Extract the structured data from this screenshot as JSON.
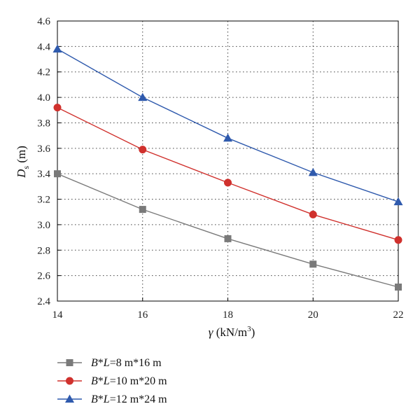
{
  "chart_data": {
    "type": "line",
    "x": [
      14,
      16,
      18,
      20,
      22
    ],
    "xlim": [
      14,
      22
    ],
    "ylim": [
      2.4,
      4.6
    ],
    "x_ticks": [
      "14",
      "16",
      "18",
      "20",
      "22"
    ],
    "y_ticks": [
      "2.4",
      "2.6",
      "2.8",
      "3.0",
      "3.2",
      "3.4",
      "3.6",
      "3.8",
      "4.0",
      "4.2",
      "4.4",
      "4.6"
    ],
    "xlabel": "γ (kN/m³)",
    "ylabel": "Ds (m)",
    "grid": "dotted",
    "legend_position": "bottom-left, below plot",
    "series": [
      {
        "name": "B*L=8 m*16 m",
        "values": [
          3.4,
          3.12,
          2.89,
          2.69,
          2.51
        ],
        "color": "#7a7a7a",
        "marker": "square"
      },
      {
        "name": "B*L=10 m*20 m",
        "values": [
          3.92,
          3.59,
          3.33,
          3.08,
          2.88
        ],
        "color": "#d0312d",
        "marker": "circle"
      },
      {
        "name": "B*L=12 m*24 m",
        "values": [
          4.38,
          4.0,
          3.68,
          3.41,
          3.18
        ],
        "color": "#2f5aad",
        "marker": "triangle"
      }
    ]
  }
}
